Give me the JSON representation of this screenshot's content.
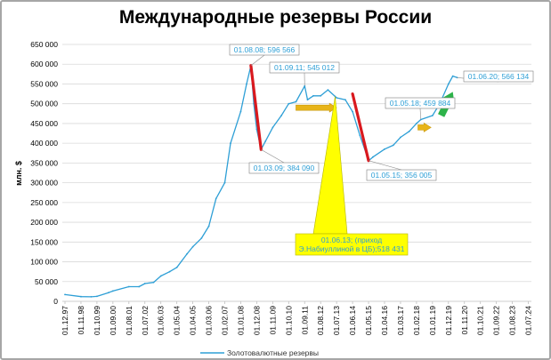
{
  "chart_data": {
    "type": "line",
    "title": "Международные резервы России",
    "ylabel": "млн. $",
    "xlabel": "",
    "ylim": [
      0,
      650000
    ],
    "yticks": [
      "0",
      "50 000",
      "100 000",
      "150 000",
      "200 000",
      "250 000",
      "300 000",
      "350 000",
      "400 000",
      "450 000",
      "500 000",
      "550 000",
      "600 000",
      "650 000"
    ],
    "xticks": [
      "01.12.97",
      "01.11.98",
      "01.10.99",
      "01.09.00",
      "01.08.01",
      "01.07.02",
      "01.06.03",
      "01.05.04",
      "01.04.05",
      "01.03.06",
      "01.02.07",
      "01.01.08",
      "01.12.08",
      "01.11.09",
      "01.10.10",
      "01.09.11",
      "01.08.12",
      "01.07.13",
      "01.06.14",
      "01.05.15",
      "01.04.16",
      "01.03.17",
      "01.02.18",
      "01.01.19",
      "01.12.19",
      "01.11.20",
      "01.10.21",
      "01.09.22",
      "01.08.23",
      "01.07.24"
    ],
    "legend": "bottom",
    "grid": true,
    "series": [
      {
        "name": "Золотовалютные резервы",
        "color": "#2e9fd6",
        "points": [
          [
            "01.12.97",
            17000
          ],
          [
            "01.11.98",
            12000
          ],
          [
            "01.06.99",
            11500
          ],
          [
            "01.10.99",
            12500
          ],
          [
            "01.06.00",
            22000
          ],
          [
            "01.09.00",
            26000
          ],
          [
            "01.08.01",
            37000
          ],
          [
            "01.03.02",
            37000
          ],
          [
            "01.07.02",
            45000
          ],
          [
            "01.01.03",
            48000
          ],
          [
            "01.06.03",
            64000
          ],
          [
            "01.12.03",
            75000
          ],
          [
            "01.05.04",
            86000
          ],
          [
            "01.12.04",
            120000
          ],
          [
            "01.04.05",
            138000
          ],
          [
            "01.10.05",
            160000
          ],
          [
            "01.03.06",
            190000
          ],
          [
            "01.08.06",
            260000
          ],
          [
            "01.02.07",
            300000
          ],
          [
            "01.06.07",
            400000
          ],
          [
            "01.01.08",
            480000
          ],
          [
            "01.05.08",
            550000
          ],
          [
            "01.08.08",
            596566
          ],
          [
            "01.10.08",
            500000
          ],
          [
            "01.12.08",
            435000
          ],
          [
            "01.03.09",
            384090
          ],
          [
            "01.06.09",
            405000
          ],
          [
            "01.11.09",
            440000
          ],
          [
            "01.05.10",
            470000
          ],
          [
            "01.10.10",
            500000
          ],
          [
            "01.03.11",
            505000
          ],
          [
            "01.09.11",
            545012
          ],
          [
            "01.11.11",
            510000
          ],
          [
            "01.03.12",
            520000
          ],
          [
            "01.08.12",
            520000
          ],
          [
            "01.01.13",
            535000
          ],
          [
            "01.06.13",
            518431
          ],
          [
            "01.07.13",
            515000
          ],
          [
            "01.01.14",
            510000
          ],
          [
            "01.06.14",
            480000
          ],
          [
            "01.11.14",
            420000
          ],
          [
            "01.05.15",
            356005
          ],
          [
            "01.08.15",
            365000
          ],
          [
            "01.04.16",
            385000
          ],
          [
            "01.10.16",
            395000
          ],
          [
            "01.03.17",
            415000
          ],
          [
            "01.09.17",
            430000
          ],
          [
            "01.02.18",
            450000
          ],
          [
            "01.05.18",
            459884
          ],
          [
            "01.01.19",
            470000
          ],
          [
            "01.06.19",
            500000
          ],
          [
            "01.12.19",
            550000
          ],
          [
            "01.03.20",
            570000
          ],
          [
            "01.06.20",
            566134
          ]
        ]
      }
    ],
    "annotations": [
      {
        "label": "01.08.08; 596 566",
        "x": "01.08.08",
        "y": 596566
      },
      {
        "label": "01.03.09; 384 090",
        "x": "01.03.09",
        "y": 384090
      },
      {
        "label": "01.09.11; 545 012",
        "x": "01.09.11",
        "y": 545012
      },
      {
        "label": "01.05.18; 459 884",
        "x": "01.05.18",
        "y": 459884
      },
      {
        "label": "01.05.15; 356 005",
        "x": "01.05.15",
        "y": 356005
      },
      {
        "label": "01.06.20; 566 134",
        "x": "01.06.20",
        "y": 566134
      },
      {
        "lines": [
          "01.06.13; (приход",
          "Э.Набиуллиной в ЦБ);518 431"
        ],
        "x": "01.06.13",
        "y": 518431
      }
    ],
    "arrows": [
      {
        "kind": "decline",
        "color": "#d9191e",
        "from": [
          "01.08.08",
          596566
        ],
        "to": [
          "01.03.09",
          384090
        ]
      },
      {
        "kind": "decline",
        "color": "#d9191e",
        "from": [
          "01.06.14",
          525000
        ],
        "to": [
          "01.05.15",
          356005
        ]
      },
      {
        "kind": "flat",
        "color": "#e8b419",
        "from": [
          "01.03.11",
          490000
        ],
        "to": [
          "01.07.13",
          490000
        ]
      },
      {
        "kind": "flat",
        "color": "#e8b419",
        "from": [
          "01.03.18",
          440000
        ],
        "to": [
          "01.12.18",
          440000
        ]
      },
      {
        "kind": "rise",
        "color": "#2db34a",
        "from": [
          "01.07.19",
          470000
        ],
        "to": [
          "01.03.20",
          530000
        ]
      }
    ]
  }
}
